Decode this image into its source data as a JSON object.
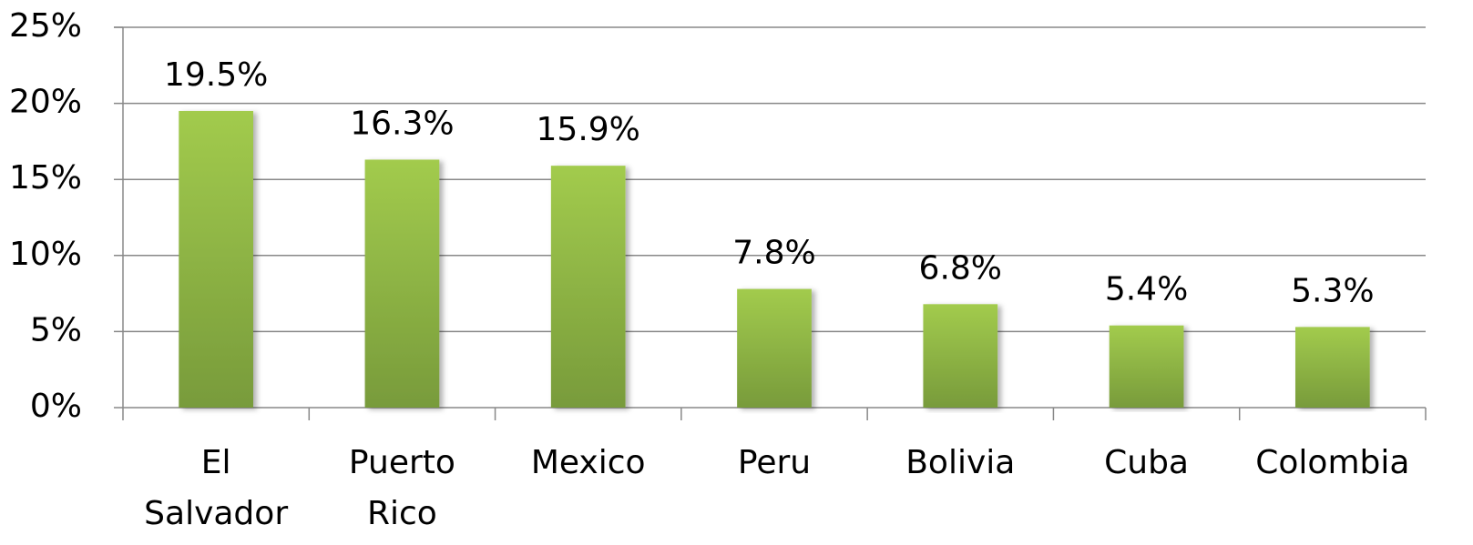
{
  "chart_data": {
    "type": "bar",
    "categories": [
      "El Salvador",
      "Puerto Rico",
      "Mexico",
      "Peru",
      "Bolivia",
      "Cuba",
      "Colombia"
    ],
    "values": [
      19.5,
      16.3,
      15.9,
      7.8,
      6.8,
      5.4,
      5.3
    ],
    "value_labels": [
      "19.5%",
      "16.3%",
      "15.9%",
      "7.8%",
      "6.8%",
      "5.4%",
      "5.3%"
    ],
    "color": "#8cb443",
    "ylim": [
      0,
      25
    ],
    "yticks": [
      {
        "value": 0,
        "label": "0%"
      },
      {
        "value": 5,
        "label": "5%"
      },
      {
        "value": 10,
        "label": "10%"
      },
      {
        "value": 15,
        "label": "15%"
      },
      {
        "value": 20,
        "label": "20%"
      },
      {
        "value": 25,
        "label": "25%"
      }
    ],
    "grid": true
  }
}
